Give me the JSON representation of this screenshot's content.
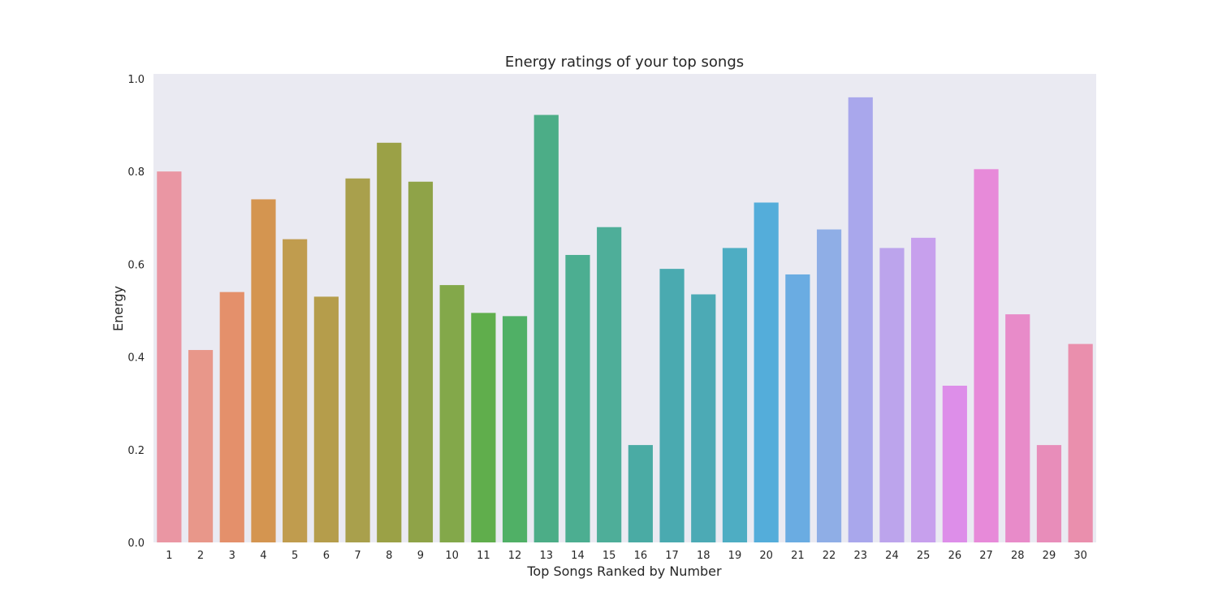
{
  "chart_data": {
    "type": "bar",
    "title": "Energy ratings of your top songs",
    "xlabel": "Top Songs Ranked by Number",
    "ylabel": "Energy",
    "ylim": [
      0,
      1.0
    ],
    "yticks": [
      "0.0",
      "0.2",
      "0.4",
      "0.6",
      "0.8",
      "1.0"
    ],
    "grid": false,
    "categories": [
      "1",
      "2",
      "3",
      "4",
      "5",
      "6",
      "7",
      "8",
      "9",
      "10",
      "11",
      "12",
      "13",
      "14",
      "15",
      "16",
      "17",
      "18",
      "19",
      "20",
      "21",
      "22",
      "23",
      "24",
      "25",
      "26",
      "27",
      "28",
      "29",
      "30"
    ],
    "values": [
      0.8,
      0.415,
      0.54,
      0.74,
      0.654,
      0.53,
      0.785,
      0.862,
      0.778,
      0.555,
      0.495,
      0.488,
      0.922,
      0.62,
      0.68,
      0.21,
      0.59,
      0.535,
      0.635,
      0.733,
      0.578,
      0.675,
      0.96,
      0.635,
      0.657,
      0.338,
      0.805,
      0.492,
      0.21,
      0.428
    ],
    "colors": [
      "#ea96a3",
      "#e8978a",
      "#e4906b",
      "#d49550",
      "#c09c4e",
      "#b59d4b",
      "#a9a04c",
      "#9ba146",
      "#8fa348",
      "#83a84a",
      "#60ae4c",
      "#50b066",
      "#4cad87",
      "#4cae91",
      "#4eae99",
      "#4aaba4",
      "#4aaab0",
      "#4caab5",
      "#4eadc3",
      "#54adda",
      "#6aace2",
      "#8faee6",
      "#a9a7ec",
      "#bca4ec",
      "#c7a0ed",
      "#dd8ee9",
      "#e78ad9",
      "#e88bc9",
      "#e88dba",
      "#ea8fad"
    ],
    "plot_bg": "#eaeaf2"
  }
}
